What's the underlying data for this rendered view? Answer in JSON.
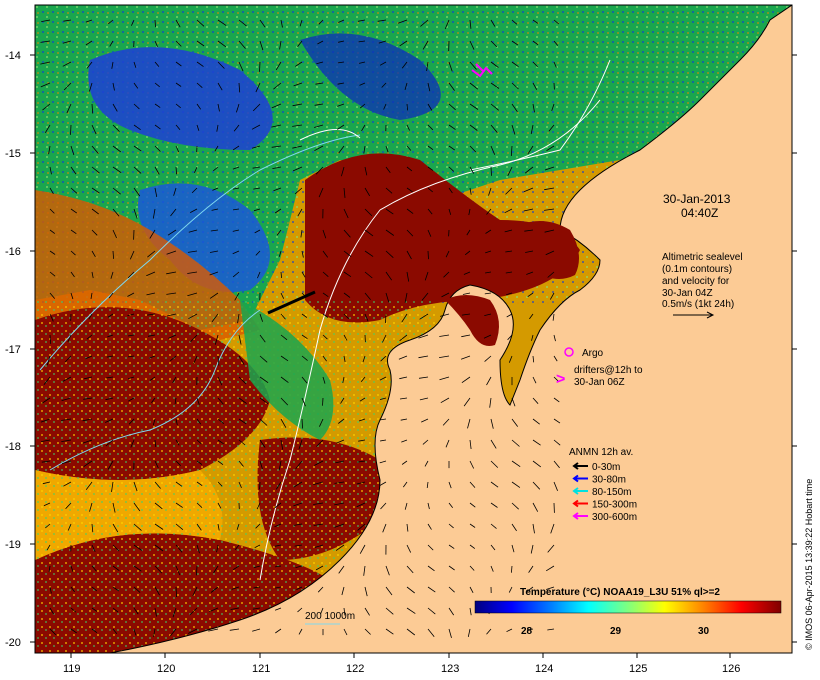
{
  "map": {
    "lon_ticks": [
      "119",
      "120",
      "121",
      "122",
      "123",
      "124",
      "125",
      "126"
    ],
    "lat_ticks": [
      "-14",
      "-15",
      "-16",
      "-17",
      "-18",
      "-19",
      "-20"
    ],
    "region": "North-west Australia (Kimberley coast)"
  },
  "timestamp": {
    "date": "30-Jan-2013",
    "time": "04:40Z"
  },
  "altimetry_note": {
    "lines": [
      "Altimetric sealevel",
      "(0.1m contours)",
      "and velocity for",
      "30-Jan 04Z",
      "0.5m/s (1kt 24h)"
    ]
  },
  "argo": {
    "label": "Argo"
  },
  "drifters": {
    "lines": [
      "drifters@12h to",
      "30-Jan 06Z"
    ]
  },
  "anmn": {
    "title": "ANMN 12h av.",
    "items": [
      {
        "label": "0-30m",
        "color": "#000000"
      },
      {
        "label": "30-80m",
        "color": "#0000ff"
      },
      {
        "label": "80-150m",
        "color": "#00e0e0"
      },
      {
        "label": "150-300m",
        "color": "#ff0000"
      },
      {
        "label": "300-600m",
        "color": "#ff00ff"
      }
    ]
  },
  "colorbar": {
    "title": "Temperature (°C) NOAA19_L3U 51% ql>=2",
    "ticks": [
      "28",
      "29",
      "30"
    ],
    "colors": [
      "#00007f",
      "#0000ff",
      "#007fff",
      "#00ffff",
      "#7fff7f",
      "#ffff00",
      "#ff7f00",
      "#ff0000",
      "#7f0000"
    ]
  },
  "bathymetry_legend": {
    "label": "200 1000m"
  },
  "credit": "© IMOS 06-Apr-2015 13:39:22 Hobart time",
  "colors": {
    "land": "#fccb95",
    "sea_hot": "#8b0a00",
    "sea_warm": "#c24f00",
    "sea_cool": "#1a9c4a"
  }
}
